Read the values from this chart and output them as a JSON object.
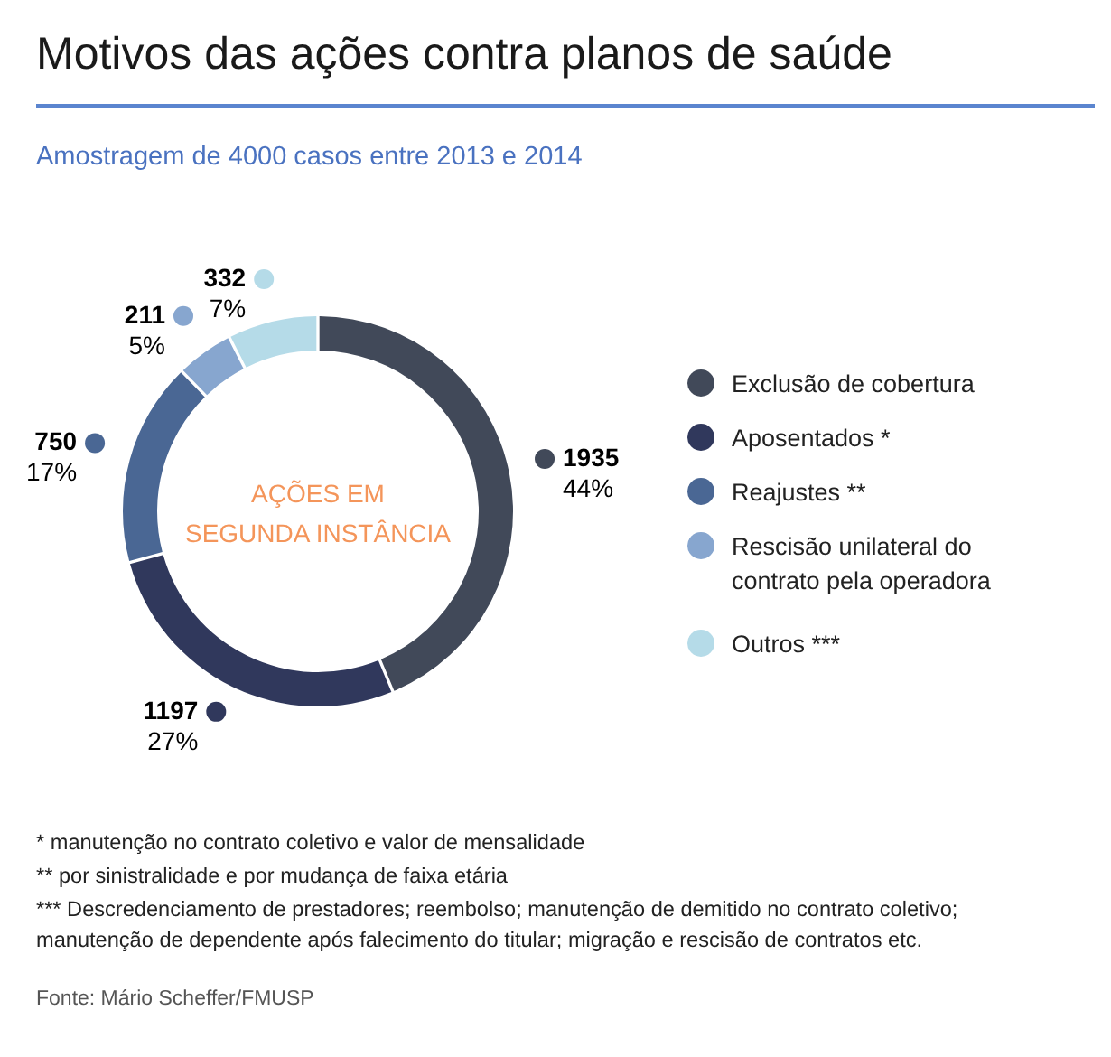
{
  "chart_data": {
    "type": "donut",
    "title": "Motivos das ações contra planos de saúde",
    "subtitle": "Amostragem de 4000 casos entre 2013 e 2014",
    "categories": [
      "Exclusão de cobertura",
      "Aposentados *",
      "Reajustes **",
      "Rescisão unilateral do contrato pela operadora",
      "Outros ***"
    ],
    "values": [
      1935,
      1197,
      750,
      211,
      332
    ],
    "value_labels": [
      "1935\n44%",
      "1197\n27%",
      "750\n17%",
      "211\n5%",
      "332\n7%"
    ],
    "colors": [
      "#414959",
      "#30385c",
      "#4a6794",
      "#87a6cf",
      "#b5dbe8"
    ],
    "legend": "right",
    "annotations": [
      "AÇÕES EM\nSEGUNDA INSTÂNCIA",
      "* manutenção no contrato coletivo e valor de mensalidade",
      "** por sinistralidade e por mudança de faixa etária",
      "*** Descredenciamento de prestadores; reembolso; manutenção de demitido no contrato coletivo;\nmanutenção de dependente após falecimento do titular; migração e rescisão de contratos etc.",
      "Fonte: Mário Scheffer/FMUSP"
    ]
  }
}
